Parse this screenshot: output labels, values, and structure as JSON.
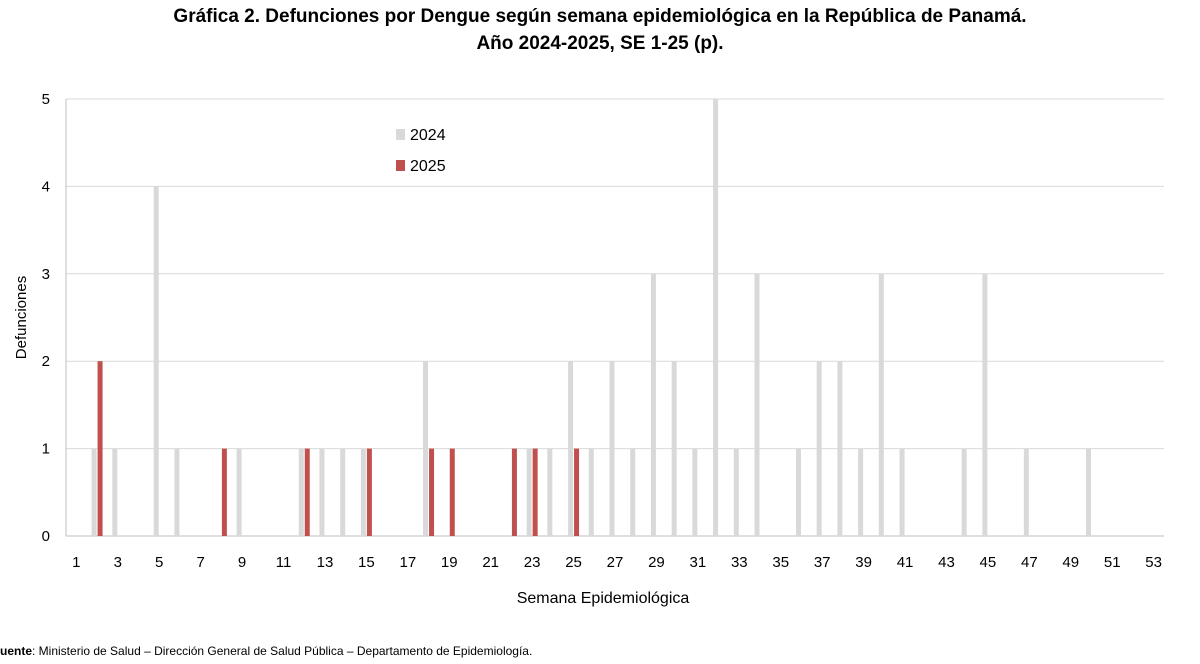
{
  "title_line1": "Gráfica 2. Defunciones por Dengue según semana epidemiológica en la República de Panamá.",
  "title_line2": "Año 2024-2025, SE 1-25 (p).",
  "source_label": "uente",
  "source_text": ": Ministerio de Salud – Dirección General de Salud Pública – Departamento de Epidemiología.",
  "colors": {
    "2024": "#d9d9d9",
    "2025": "#c0504d"
  },
  "chart_data": {
    "type": "bar",
    "xlabel": "Semana Epidemiológica",
    "ylabel": "Defunciones",
    "ylim": [
      0,
      5
    ],
    "yticks": [
      0,
      1,
      2,
      3,
      4,
      5
    ],
    "xticks": [
      1,
      3,
      5,
      7,
      9,
      11,
      13,
      15,
      17,
      19,
      21,
      23,
      25,
      27,
      29,
      31,
      33,
      35,
      37,
      39,
      41,
      43,
      45,
      47,
      49,
      51,
      53
    ],
    "grid": true,
    "legend_position": "top-center",
    "categories": [
      1,
      2,
      3,
      4,
      5,
      6,
      7,
      8,
      9,
      10,
      11,
      12,
      13,
      14,
      15,
      16,
      17,
      18,
      19,
      20,
      21,
      22,
      23,
      24,
      25,
      26,
      27,
      28,
      29,
      30,
      31,
      32,
      33,
      34,
      35,
      36,
      37,
      38,
      39,
      40,
      41,
      42,
      43,
      44,
      45,
      46,
      47,
      48,
      49,
      50,
      51,
      52,
      53
    ],
    "series": [
      {
        "name": "2024",
        "values": [
          0,
          1,
          1,
          0,
          4,
          1,
          0,
          0,
          1,
          0,
          0,
          1,
          1,
          1,
          1,
          0,
          0,
          2,
          0,
          0,
          0,
          0,
          1,
          1,
          2,
          1,
          2,
          1,
          3,
          2,
          1,
          5,
          1,
          3,
          0,
          1,
          2,
          2,
          1,
          3,
          1,
          0,
          0,
          1,
          3,
          0,
          1,
          0,
          0,
          1,
          0,
          0,
          0
        ]
      },
      {
        "name": "2025",
        "values": [
          0,
          2,
          0,
          0,
          0,
          0,
          0,
          1,
          0,
          0,
          0,
          1,
          0,
          0,
          1,
          0,
          0,
          1,
          1,
          0,
          0,
          1,
          1,
          0,
          1,
          0,
          0,
          0,
          0,
          0,
          0,
          0,
          0,
          0,
          0,
          0,
          0,
          0,
          0,
          0,
          0,
          0,
          0,
          0,
          0,
          0,
          0,
          0,
          0,
          0,
          0,
          0,
          0
        ]
      }
    ]
  }
}
